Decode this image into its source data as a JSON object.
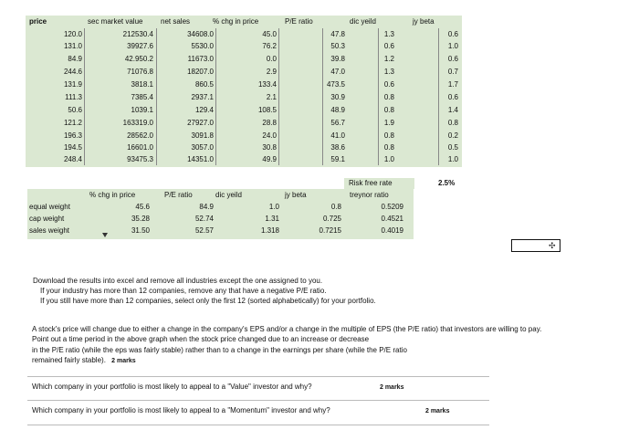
{
  "headers": {
    "price": "price",
    "sec_market_value": "sec market value",
    "net_sales": "net sales",
    "pct_chg_price": "% chg in price",
    "pe_ratio": "P/E ratio",
    "div_yield": "dic yeild",
    "beta": "jy beta"
  },
  "rows": [
    {
      "price": "120.0",
      "smv": "212530.4",
      "ns": "34608.0",
      "chg": "45.0",
      "pe": "47.8",
      "dy": "1.3",
      "beta": "0.6"
    },
    {
      "price": "131.0",
      "smv": "39927.6",
      "ns": "5530.0",
      "chg": "76.2",
      "pe": "50.3",
      "dy": "0.6",
      "beta": "1.0"
    },
    {
      "price": "84.9",
      "smv": "42.950.2",
      "ns": "11673.0",
      "chg": "0.0",
      "pe": "39.8",
      "dy": "1.2",
      "beta": "0.6"
    },
    {
      "price": "244.6",
      "smv": "71076.8",
      "ns": "18207.0",
      "chg": "2.9",
      "pe": "47.0",
      "dy": "1.3",
      "beta": "0.7"
    },
    {
      "price": "131.9",
      "smv": "3818.1",
      "ns": "860.5",
      "chg": "133.4",
      "pe": "473.5",
      "dy": "0.6",
      "beta": "1.7"
    },
    {
      "price": "111.3",
      "smv": "7385.4",
      "ns": "2937.1",
      "chg": "2.1",
      "pe": "30.9",
      "dy": "0.8",
      "beta": "0.6"
    },
    {
      "price": "50.6",
      "smv": "1039.1",
      "ns": "129.4",
      "chg": "108.5",
      "pe": "48.9",
      "dy": "0.8",
      "beta": "1.4"
    },
    {
      "price": "121.2",
      "smv": "163319.0",
      "ns": "27927.0",
      "chg": "28.8",
      "pe": "56.7",
      "dy": "1.9",
      "beta": "0.8"
    },
    {
      "price": "196.3",
      "smv": "28562.0",
      "ns": "3091.8",
      "chg": "24.0",
      "pe": "41.0",
      "dy": "0.8",
      "beta": "0.2"
    },
    {
      "price": "194.5",
      "smv": "16601.0",
      "ns": "3057.0",
      "chg": "30.8",
      "pe": "38.6",
      "dy": "0.8",
      "beta": "0.5"
    },
    {
      "price": "248.4",
      "smv": "93475.3",
      "ns": "14351.0",
      "chg": "49.9",
      "pe": "59.1",
      "dy": "1.0",
      "beta": "1.0"
    }
  ],
  "risk_free": {
    "label": "Risk free rate",
    "value": "2.5%"
  },
  "summary": {
    "headers": {
      "chg": "% chg in price",
      "pe": "P/E ratio",
      "dy": "dic yeild",
      "beta": "jy beta",
      "treynor": "treynor ratio"
    },
    "rows": [
      {
        "label": "equal weight",
        "chg": "45.6",
        "pe": "84.9",
        "dy": "1.0",
        "beta": "0.8",
        "treynor": "0.5209"
      },
      {
        "label": "cap weight",
        "chg": "35.28",
        "pe": "52.74",
        "dy": "1.31",
        "beta": "0.725",
        "treynor": "0.4521"
      },
      {
        "label": "sales weight",
        "chg": "31.50",
        "pe": "52.57",
        "dy": "1.318",
        "beta": "0.7215",
        "treynor": "0.4019"
      }
    ]
  },
  "instructions": {
    "line1": "Download the results into excel and remove all industries except the one assigned to you.",
    "line2": "If your industry has more than 12 companies, remove any that have a negative P/E ratio.",
    "line3": "If you still have more than 12 companies, select only the first 12 (sorted alphabetically) for your portfolio."
  },
  "question": {
    "line1": "A stock's price will change due to either a change in the company's EPS and/or a change in the multiple of EPS (the P/E ratio) that investors are willing to pay.",
    "line2": "Point out a time period in the above graph when the stock price changed due to an increase or decrease",
    "line3": "in the P/E ratio (while the eps was fairly stable) rather than to a change in the earnings per share (while the P/E ratio",
    "line4": "remained fairly stable).",
    "marks": "2 marks"
  },
  "q2": {
    "text": "Which company in your portfolio is most likely to appeal to a \"Value\" investor and why?",
    "marks": "2 marks"
  },
  "q3": {
    "text": "Which company in your portfolio is most likely to appeal to a \"Momentum\" investor and why?",
    "marks": "2 marks"
  }
}
